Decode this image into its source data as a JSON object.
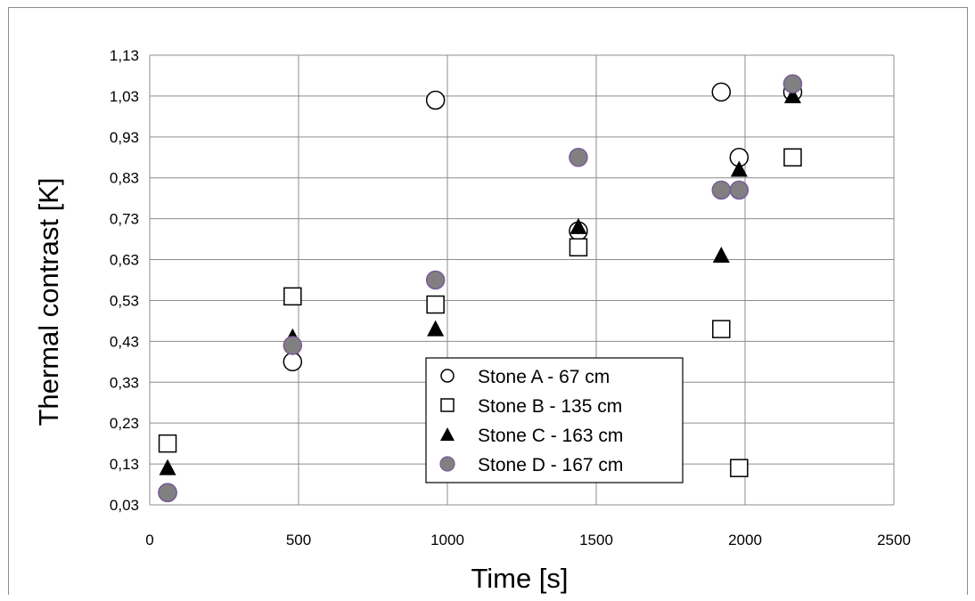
{
  "chart_data": {
    "type": "scatter",
    "title": "",
    "xlabel": "Time [s]",
    "ylabel": "Thermal contrast [K]",
    "xlim": [
      0,
      2500
    ],
    "ylim": [
      0.03,
      1.13
    ],
    "x_ticks": [
      "0",
      "500",
      "1000",
      "1500",
      "2000",
      "2500"
    ],
    "y_ticks": [
      "0,03",
      "0,13",
      "0,23",
      "0,33",
      "0,43",
      "0,53",
      "0,63",
      "0,73",
      "0,83",
      "0,93",
      "1,03",
      "1,13"
    ],
    "grid": true,
    "legend_position": "center-bottom",
    "series": [
      {
        "name": "Stone A - 67 cm",
        "marker": "open-circle",
        "color": "#000000",
        "points": [
          [
            60,
            0.06
          ],
          [
            480,
            0.38
          ],
          [
            960,
            1.02
          ],
          [
            1440,
            0.7
          ],
          [
            1920,
            1.04
          ],
          [
            1980,
            0.88
          ],
          [
            2160,
            1.04
          ]
        ]
      },
      {
        "name": "Stone B - 135 cm",
        "marker": "open-square",
        "color": "#000000",
        "points": [
          [
            60,
            0.18
          ],
          [
            480,
            0.54
          ],
          [
            960,
            0.52
          ],
          [
            1440,
            0.66
          ],
          [
            1920,
            0.46
          ],
          [
            1980,
            0.12
          ],
          [
            2160,
            0.88
          ]
        ]
      },
      {
        "name": "Stone C - 163 cm",
        "marker": "filled-triangle",
        "color": "#000000",
        "points": [
          [
            60,
            0.12
          ],
          [
            480,
            0.44
          ],
          [
            960,
            0.46
          ],
          [
            1440,
            0.71
          ],
          [
            1920,
            0.64
          ],
          [
            1980,
            0.85
          ],
          [
            2160,
            1.03
          ]
        ]
      },
      {
        "name": "Stone D - 167 cm",
        "marker": "filled-circle",
        "color": "#808080",
        "edge_color": "#7a5c9a",
        "points": [
          [
            60,
            0.06
          ],
          [
            480,
            0.42
          ],
          [
            960,
            0.58
          ],
          [
            1440,
            0.88
          ],
          [
            1920,
            0.8
          ],
          [
            1980,
            0.8
          ],
          [
            2160,
            1.06
          ]
        ]
      }
    ]
  }
}
